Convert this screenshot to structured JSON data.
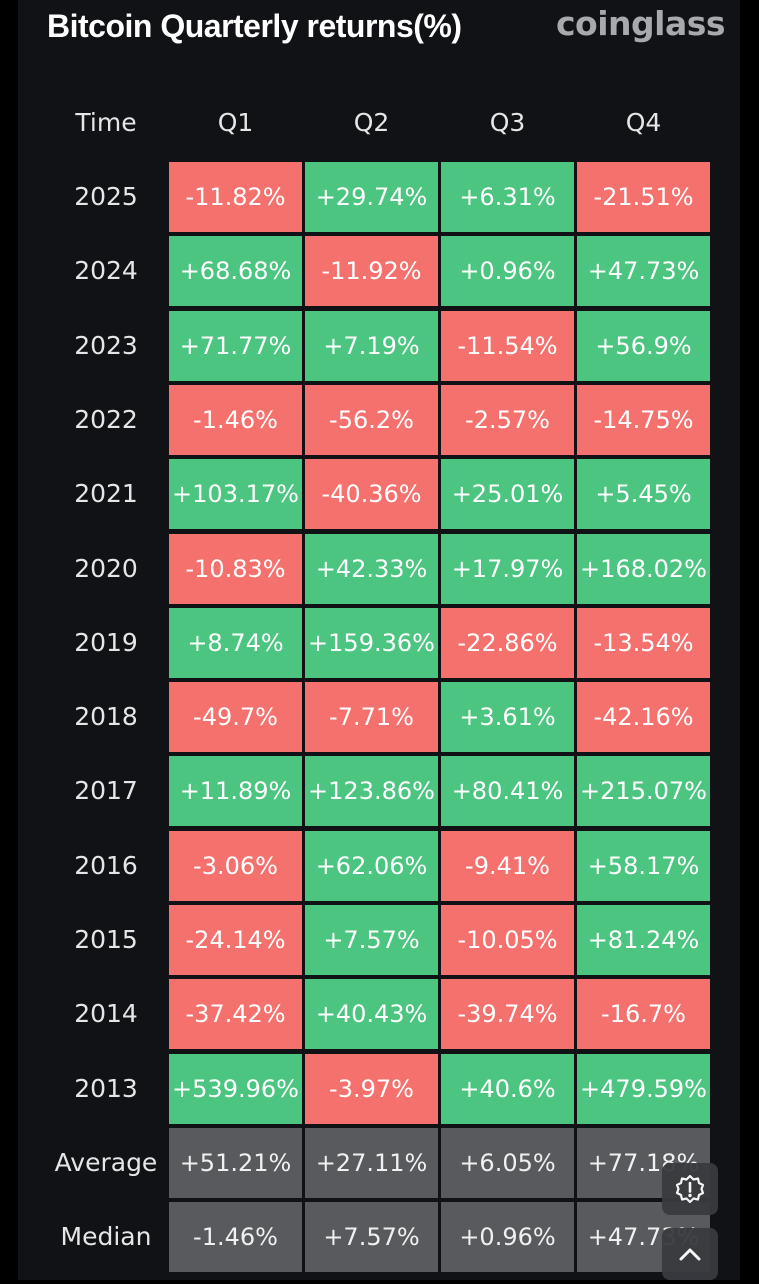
{
  "title": "Bitcoin Quarterly returns(%)",
  "brand": "coinglass",
  "colors": {
    "positive": "#4cc581",
    "negative": "#f4716e",
    "summary": "#595a5e",
    "background": "#111216"
  },
  "chart_data": {
    "type": "table",
    "columns": [
      "Time",
      "Q1",
      "Q2",
      "Q3",
      "Q4"
    ],
    "rows": [
      {
        "label": "2025",
        "values": [
          "-11.82%",
          "+29.74%",
          "+6.31%",
          "-21.51%"
        ]
      },
      {
        "label": "2024",
        "values": [
          "+68.68%",
          "-11.92%",
          "+0.96%",
          "+47.73%"
        ]
      },
      {
        "label": "2023",
        "values": [
          "+71.77%",
          "+7.19%",
          "-11.54%",
          "+56.9%"
        ]
      },
      {
        "label": "2022",
        "values": [
          "-1.46%",
          "-56.2%",
          "-2.57%",
          "-14.75%"
        ]
      },
      {
        "label": "2021",
        "values": [
          "+103.17%",
          "-40.36%",
          "+25.01%",
          "+5.45%"
        ]
      },
      {
        "label": "2020",
        "values": [
          "-10.83%",
          "+42.33%",
          "+17.97%",
          "+168.02%"
        ]
      },
      {
        "label": "2019",
        "values": [
          "+8.74%",
          "+159.36%",
          "-22.86%",
          "-13.54%"
        ]
      },
      {
        "label": "2018",
        "values": [
          "-49.7%",
          "-7.71%",
          "+3.61%",
          "-42.16%"
        ]
      },
      {
        "label": "2017",
        "values": [
          "+11.89%",
          "+123.86%",
          "+80.41%",
          "+215.07%"
        ]
      },
      {
        "label": "2016",
        "values": [
          "-3.06%",
          "+62.06%",
          "-9.41%",
          "+58.17%"
        ]
      },
      {
        "label": "2015",
        "values": [
          "-24.14%",
          "+7.57%",
          "-10.05%",
          "+81.24%"
        ]
      },
      {
        "label": "2014",
        "values": [
          "-37.42%",
          "+40.43%",
          "-39.74%",
          "-16.7%"
        ]
      },
      {
        "label": "2013",
        "values": [
          "+539.96%",
          "-3.97%",
          "+40.6%",
          "+479.59%"
        ]
      }
    ],
    "summary": [
      {
        "label": "Average",
        "values": [
          "+51.21%",
          "+27.11%",
          "+6.05%",
          "+77.18%"
        ]
      },
      {
        "label": "Median",
        "values": [
          "-1.46%",
          "+7.57%",
          "+0.96%",
          "+47.73%"
        ]
      }
    ]
  },
  "floating_buttons": [
    {
      "name": "feedback-button",
      "icon": "alert-badge-icon"
    },
    {
      "name": "scroll-top-button",
      "icon": "chevron-up-icon"
    }
  ]
}
